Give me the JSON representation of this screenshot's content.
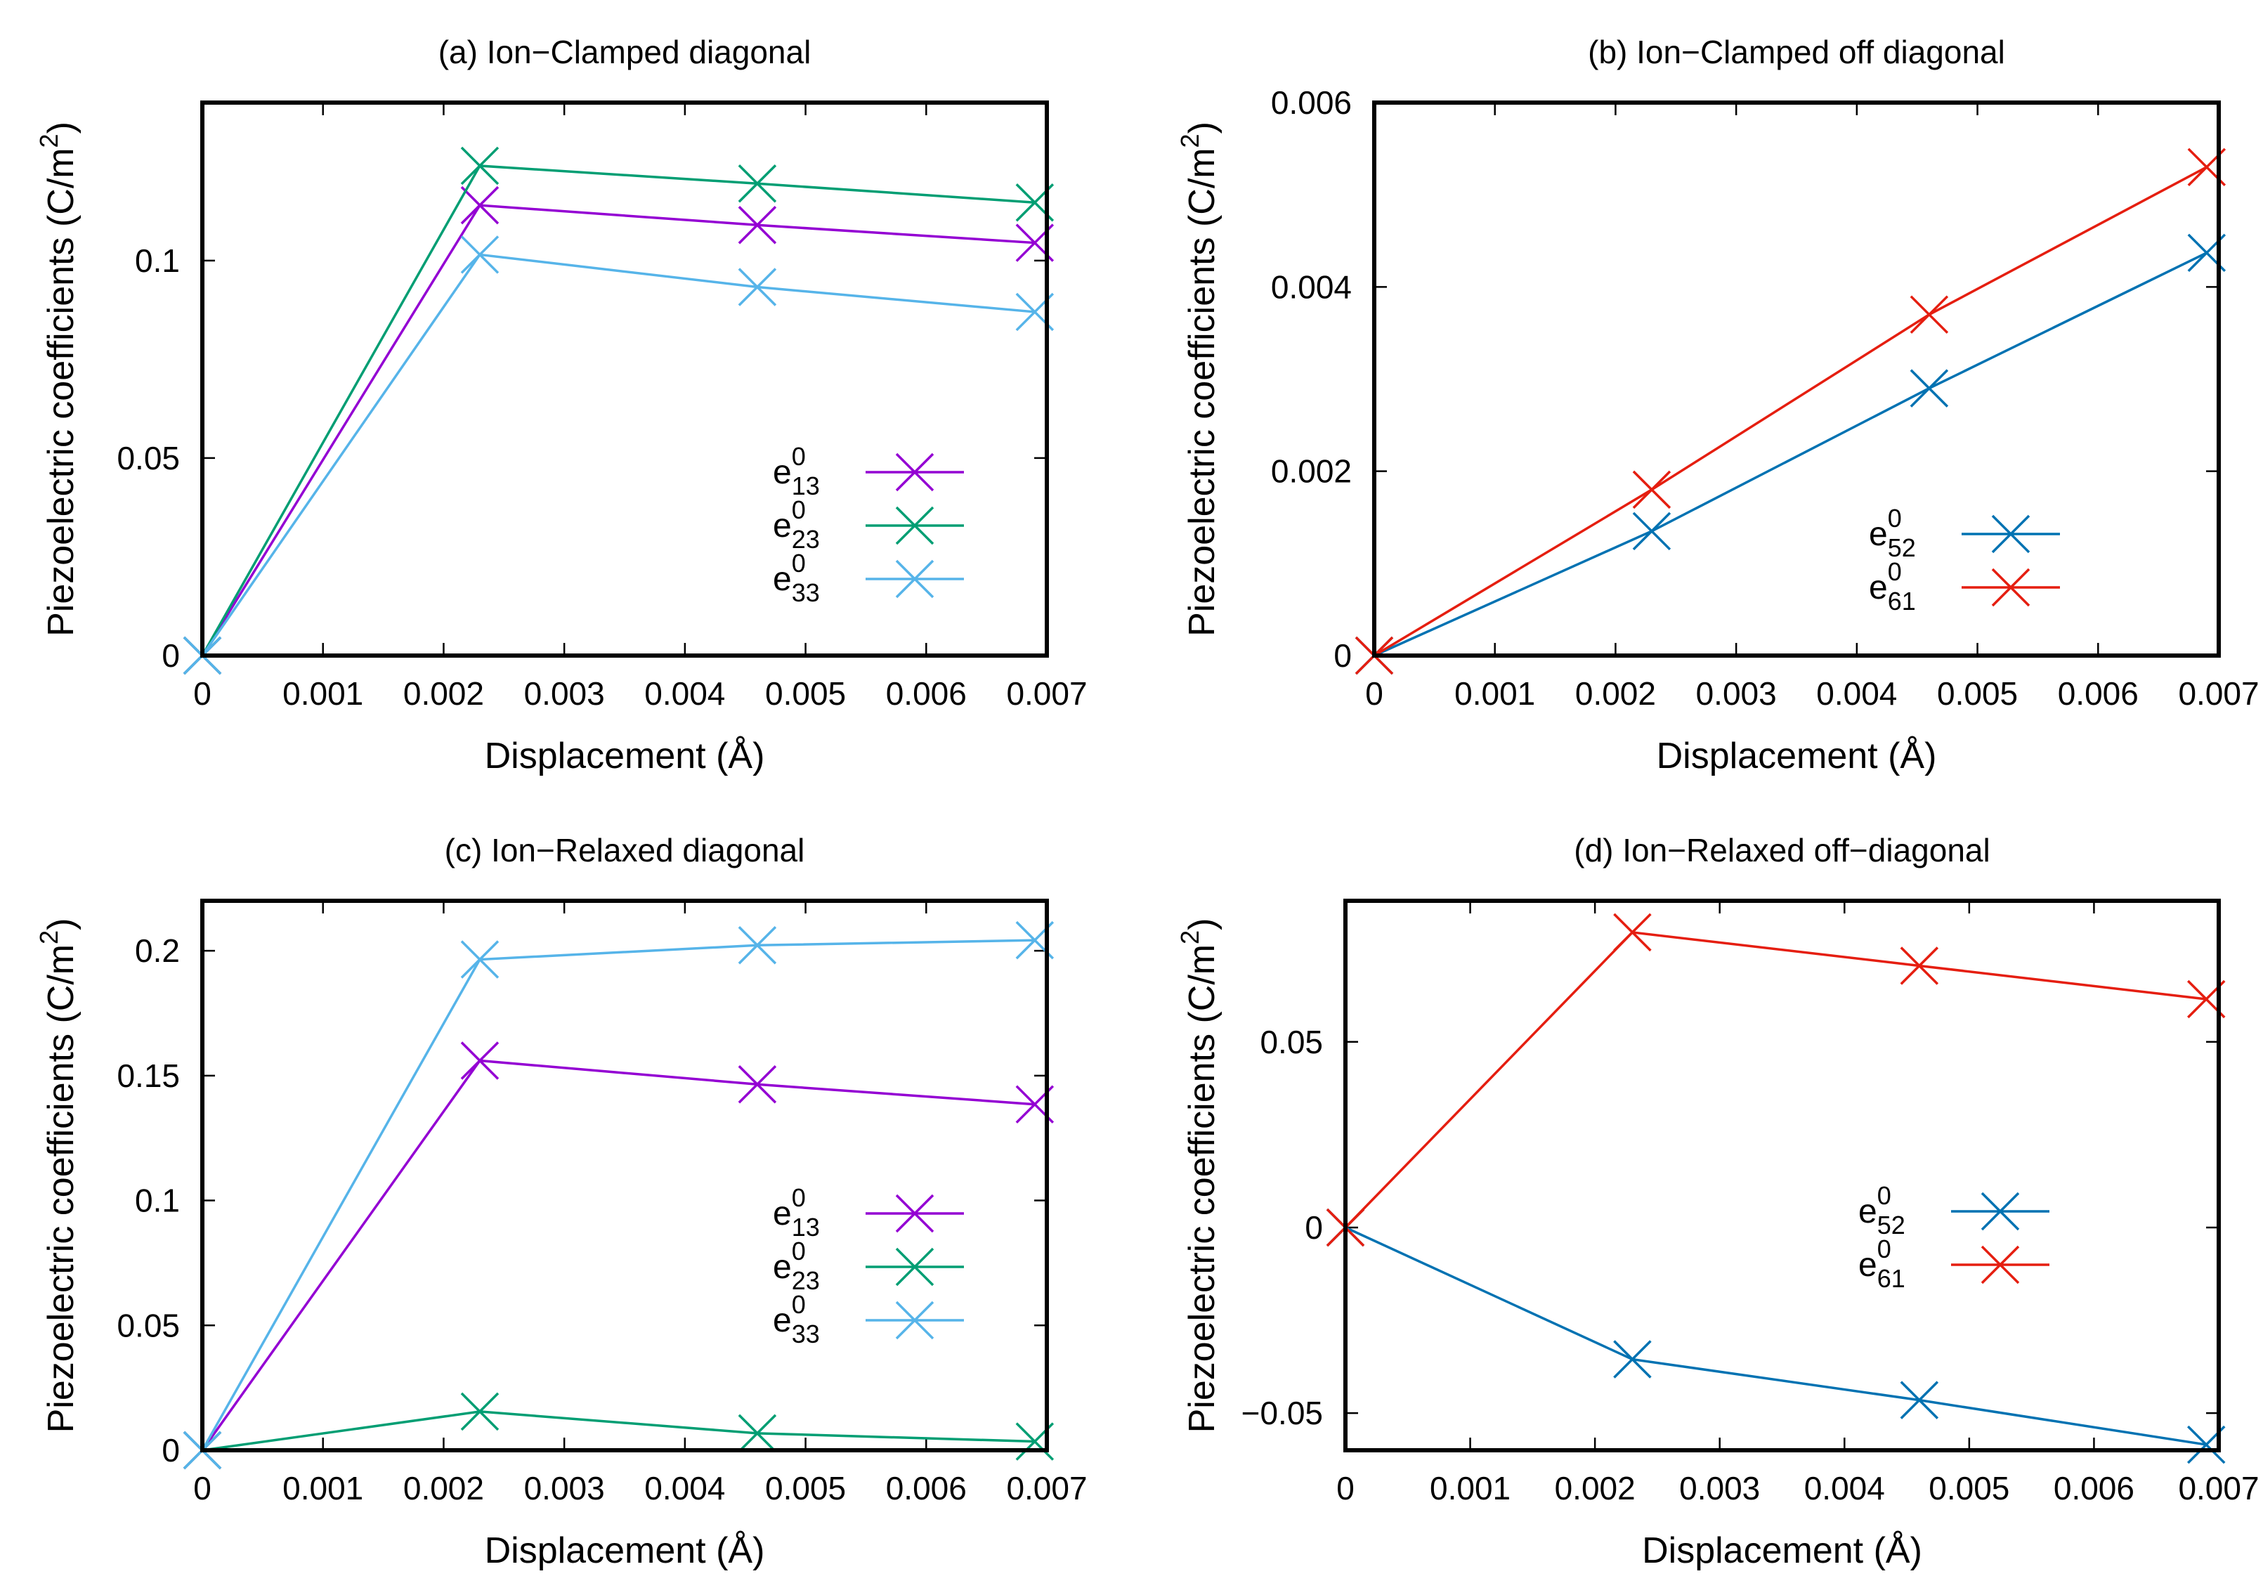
{
  "chart_data": [
    {
      "type": "line",
      "title": "(a) Ion−Clamped diagonal",
      "xlabel": "Displacement (Å)",
      "ylabel": "Piezoelectric coefficients (C/m",
      "ylabel_sup": "2",
      "ylabel_close": ")",
      "xlim": [
        0,
        0.007
      ],
      "ylim": [
        0,
        0.14
      ],
      "x_ticks": [
        0,
        0.001,
        0.002,
        0.003,
        0.004,
        0.005,
        0.006,
        0.007
      ],
      "x_tick_labels": [
        "0",
        "0.001",
        "0.002",
        "0.003",
        "0.004",
        "0.005",
        "0.006",
        "0.007"
      ],
      "y_ticks": [
        0,
        0.05,
        0.1
      ],
      "y_tick_labels": [
        "0",
        "0.05",
        "0.1"
      ],
      "legend_position": "bottom-right",
      "marker": "x",
      "series": [
        {
          "name": "e",
          "sup": "0",
          "sub": "13",
          "color": "#9400d3",
          "x": [
            0,
            0.0023,
            0.0046,
            0.0069
          ],
          "y": [
            0,
            0.114,
            0.109,
            0.1045
          ]
        },
        {
          "name": "e",
          "sup": "0",
          "sub": "23",
          "color": "#009e73",
          "x": [
            0,
            0.0023,
            0.0046,
            0.0069
          ],
          "y": [
            0,
            0.124,
            0.1195,
            0.1147
          ]
        },
        {
          "name": "e",
          "sup": "0",
          "sub": "33",
          "color": "#56b4e9",
          "x": [
            0,
            0.0023,
            0.0046,
            0.0069
          ],
          "y": [
            0,
            0.1015,
            0.0933,
            0.087
          ]
        }
      ]
    },
    {
      "type": "line",
      "title": "(b) Ion−Clamped off diagonal",
      "xlabel": "Displacement (Å)",
      "ylabel": "Piezoelectric coefficients (C/m",
      "ylabel_sup": "2",
      "ylabel_close": ")",
      "xlim": [
        0,
        0.007
      ],
      "ylim": [
        0,
        0.006
      ],
      "x_ticks": [
        0,
        0.001,
        0.002,
        0.003,
        0.004,
        0.005,
        0.006,
        0.007
      ],
      "x_tick_labels": [
        "0",
        "0.001",
        "0.002",
        "0.003",
        "0.004",
        "0.005",
        "0.006",
        "0.007"
      ],
      "y_ticks": [
        0,
        0.002,
        0.004,
        0.006
      ],
      "y_tick_labels": [
        "0",
        "0.002",
        "0.004",
        "0.006"
      ],
      "legend_position": "bottom-right",
      "marker": "x",
      "series": [
        {
          "name": "e",
          "sup": "0",
          "sub": "52",
          "color": "#0072b2",
          "x": [
            0,
            0.0023,
            0.0046,
            0.0069
          ],
          "y": [
            0,
            0.00135,
            0.0029,
            0.00437
          ]
        },
        {
          "name": "e",
          "sup": "0",
          "sub": "61",
          "color": "#e51e10",
          "x": [
            0,
            0.0023,
            0.0046,
            0.0069
          ],
          "y": [
            0,
            0.0018,
            0.0037,
            0.0053
          ]
        }
      ]
    },
    {
      "type": "line",
      "title": "(c) Ion−Relaxed diagonal",
      "xlabel": "Displacement (Å)",
      "ylabel": "Piezoelectric coefficients (C/m",
      "ylabel_sup": "2",
      "ylabel_close": ")",
      "xlim": [
        0,
        0.007
      ],
      "ylim": [
        0,
        0.22
      ],
      "x_ticks": [
        0,
        0.001,
        0.002,
        0.003,
        0.004,
        0.005,
        0.006,
        0.007
      ],
      "x_tick_labels": [
        "0",
        "0.001",
        "0.002",
        "0.003",
        "0.004",
        "0.005",
        "0.006",
        "0.007"
      ],
      "y_ticks": [
        0,
        0.05,
        0.1,
        0.15,
        0.2
      ],
      "y_tick_labels": [
        "0",
        "0.05",
        "0.1",
        "0.15",
        "0.2"
      ],
      "legend_position": "right",
      "marker": "x",
      "series": [
        {
          "name": "e",
          "sup": "0",
          "sub": "13",
          "color": "#9400d3",
          "x": [
            0,
            0.0023,
            0.0046,
            0.0069
          ],
          "y": [
            0,
            0.156,
            0.1465,
            0.1385
          ]
        },
        {
          "name": "e",
          "sup": "0",
          "sub": "23",
          "color": "#009e73",
          "x": [
            0,
            0.0023,
            0.0046,
            0.0069
          ],
          "y": [
            0,
            0.0155,
            0.0068,
            0.0035
          ]
        },
        {
          "name": "e",
          "sup": "0",
          "sub": "33",
          "color": "#56b4e9",
          "x": [
            0,
            0.0023,
            0.0046,
            0.0069
          ],
          "y": [
            0,
            0.1965,
            0.2022,
            0.2042
          ]
        }
      ]
    },
    {
      "type": "line",
      "title": "(d) Ion−Relaxed off−diagonal",
      "xlabel": "Displacement (Å)",
      "ylabel": "Piezoelectric coefficients (C/m",
      "ylabel_sup": "2",
      "ylabel_close": ")",
      "xlim": [
        0,
        0.007
      ],
      "ylim": [
        -0.06,
        0.088
      ],
      "x_ticks": [
        0,
        0.001,
        0.002,
        0.003,
        0.004,
        0.005,
        0.006,
        0.007
      ],
      "x_tick_labels": [
        "0",
        "0.001",
        "0.002",
        "0.003",
        "0.004",
        "0.005",
        "0.006",
        "0.007"
      ],
      "y_ticks": [
        -0.05,
        0,
        0.05
      ],
      "y_tick_labels": [
        "−0.05",
        "0",
        "0.05"
      ],
      "legend_position": "right",
      "marker": "x",
      "series": [
        {
          "name": "e",
          "sup": "0",
          "sub": "52",
          "color": "#0072b2",
          "x": [
            0,
            0.0023,
            0.0046,
            0.0069
          ],
          "y": [
            0,
            -0.0355,
            -0.0465,
            -0.0585
          ]
        },
        {
          "name": "e",
          "sup": "0",
          "sub": "61",
          "color": "#e51e10",
          "x": [
            0,
            0.0023,
            0.0046,
            0.0069
          ],
          "y": [
            0,
            0.0795,
            0.0705,
            0.0615
          ]
        }
      ]
    }
  ]
}
